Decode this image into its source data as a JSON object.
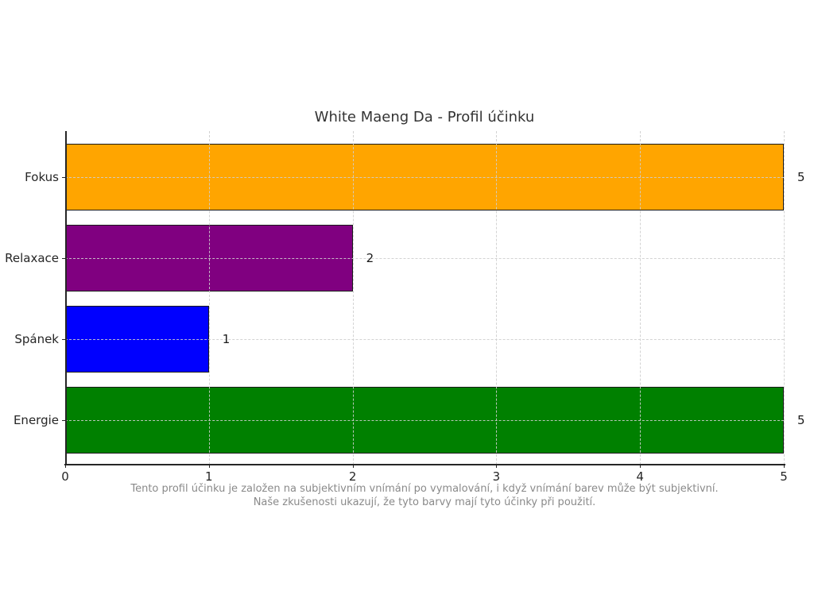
{
  "chart_data": {
    "type": "bar",
    "orientation": "horizontal",
    "title": "White Maeng Da - Profil účinku",
    "categories_top_to_bottom": [
      "Fokus",
      "Relaxace",
      "Spánek",
      "Energie"
    ],
    "values": [
      5,
      2,
      1,
      5
    ],
    "value_labels": [
      "5",
      "2",
      "1",
      "5"
    ],
    "bar_colors": [
      "#FFA500",
      "#800080",
      "#0000FF",
      "#008000"
    ],
    "bar_edge_color": "#1a1a1a",
    "xlim": [
      0,
      5
    ],
    "x_ticks": [
      "0",
      "1",
      "2",
      "3",
      "4",
      "5"
    ],
    "xlabel": "",
    "ylabel": "",
    "grid": "dashed, both axes, drawn above bars",
    "grid_color": "#cfcfcf",
    "legend": "none",
    "caption_line1": "Tento profil účinku je založen na subjektivním vnímání po vymalování, i když vnímání barev může být subjektivní.",
    "caption_line2": "Naše zkušenosti ukazují, že tyto barvy mají tyto účinky při použití."
  }
}
